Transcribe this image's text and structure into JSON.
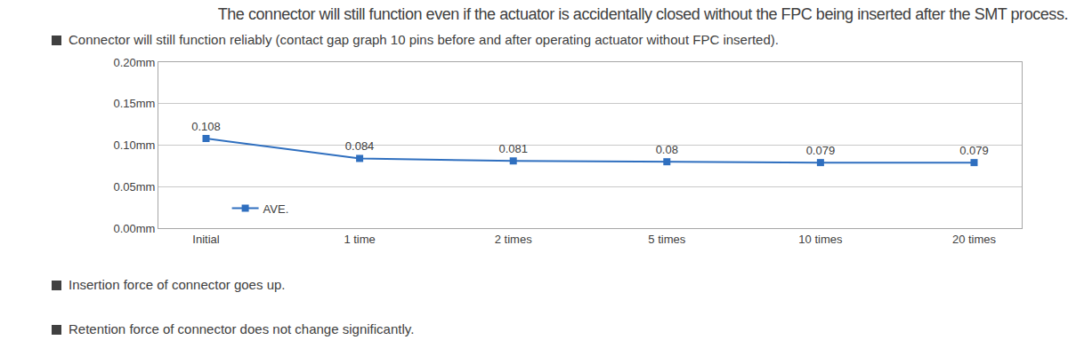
{
  "heading": "The connector will still function even if the actuator is accidentally closed without the FPC being inserted after the SMT process.",
  "bullets_above": [
    "Connector will still function reliably (contact gap graph 10 pins before and after operating actuator without FPC inserted)."
  ],
  "chart_data": {
    "type": "line",
    "categories": [
      "Initial",
      "1 time",
      "2 times",
      "5 times",
      "10 times",
      "20 times"
    ],
    "series": [
      {
        "name": "AVE.",
        "color": "#2f6fbf",
        "marker": "square",
        "values": [
          0.108,
          0.084,
          0.081,
          0.08,
          0.079,
          0.079
        ]
      }
    ],
    "ylim": [
      0,
      0.2
    ],
    "yticks": [
      {
        "value": 0,
        "label": "0.00mm"
      },
      {
        "value": 0.05,
        "label": "0.05mm"
      },
      {
        "value": 0.1,
        "label": "0.10mm"
      },
      {
        "value": 0.15,
        "label": "0.15mm"
      },
      {
        "value": 0.2,
        "label": "0.20mm"
      }
    ],
    "grid": true,
    "legend": "lower left",
    "data_labels": true
  },
  "bullets_below": [
    "Insertion force of connector goes up.",
    "Retention force of connector does not change significantly."
  ]
}
